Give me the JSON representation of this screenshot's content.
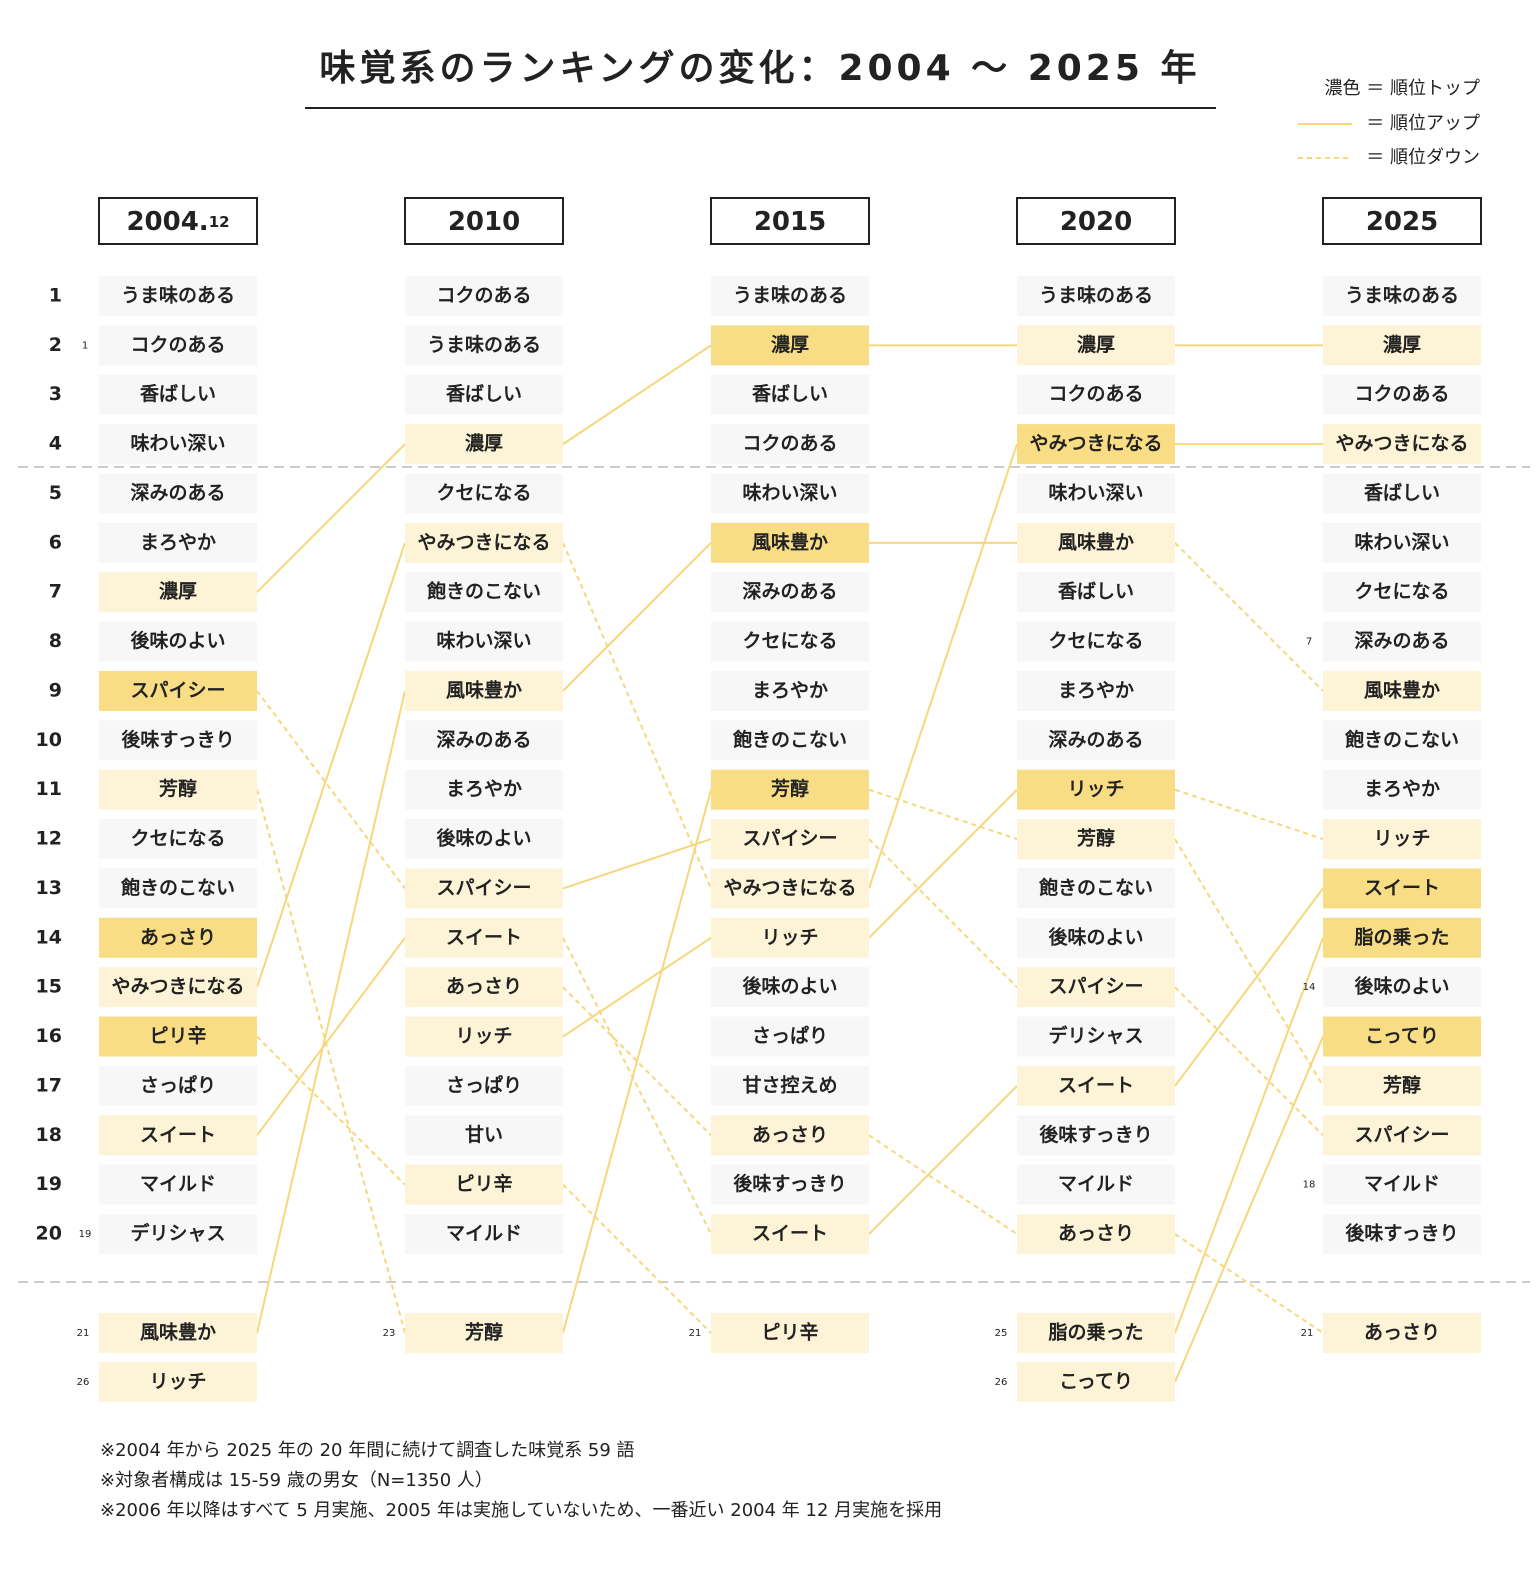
{
  "title": "味覚系のランキングの変化：2004 ～ 2025 年",
  "legend": {
    "top": "濃色 ＝ 順位トップ",
    "up": "＝ 順位アップ",
    "down": "＝ 順位ダウン"
  },
  "ranks": [
    1,
    2,
    3,
    4,
    5,
    6,
    7,
    8,
    9,
    10,
    11,
    12,
    13,
    14,
    15,
    16,
    17,
    18,
    19,
    20
  ],
  "columns": [
    {
      "year": "2004.",
      "year_sub": "12",
      "items": [
        {
          "label": "うま味のある",
          "level": "plain"
        },
        {
          "label": "コクのある",
          "level": "plain",
          "tie": 1
        },
        {
          "label": "香ばしい",
          "level": "plain"
        },
        {
          "label": "味わい深い",
          "level": "plain"
        },
        {
          "label": "深みのある",
          "level": "plain"
        },
        {
          "label": "まろやか",
          "level": "plain"
        },
        {
          "label": "濃厚",
          "level": "light"
        },
        {
          "label": "後味のよい",
          "level": "plain"
        },
        {
          "label": "スパイシー",
          "level": "dark"
        },
        {
          "label": "後味すっきり",
          "level": "plain"
        },
        {
          "label": "芳醇",
          "level": "light"
        },
        {
          "label": "クセになる",
          "level": "plain"
        },
        {
          "label": "飽きのこない",
          "level": "plain"
        },
        {
          "label": "あっさり",
          "level": "dark"
        },
        {
          "label": "やみつきになる",
          "level": "light"
        },
        {
          "label": "ピリ辛",
          "level": "dark"
        },
        {
          "label": "さっぱり",
          "level": "plain"
        },
        {
          "label": "スイート",
          "level": "light"
        },
        {
          "label": "マイルド",
          "level": "plain"
        },
        {
          "label": "デリシャス",
          "level": "plain",
          "tie": 19
        }
      ],
      "extras": [
        {
          "label": "風味豊か",
          "level": "light",
          "rank": 21
        },
        {
          "label": "リッチ",
          "level": "light",
          "rank": 26
        }
      ],
      "links": [
        [
          6,
          3
        ],
        [
          8,
          12
        ],
        [
          10,
          20
        ],
        [
          14,
          5
        ],
        [
          15,
          18
        ],
        [
          17,
          13
        ],
        [
          20,
          8
        ]
      ]
    },
    {
      "year": "2010",
      "items": [
        {
          "label": "コクのある",
          "level": "plain"
        },
        {
          "label": "うま味のある",
          "level": "plain"
        },
        {
          "label": "香ばしい",
          "level": "plain"
        },
        {
          "label": "濃厚",
          "level": "light"
        },
        {
          "label": "クセになる",
          "level": "plain"
        },
        {
          "label": "やみつきになる",
          "level": "light"
        },
        {
          "label": "飽きのこない",
          "level": "plain"
        },
        {
          "label": "味わい深い",
          "level": "plain"
        },
        {
          "label": "風味豊か",
          "level": "light"
        },
        {
          "label": "深みのある",
          "level": "plain"
        },
        {
          "label": "まろやか",
          "level": "plain"
        },
        {
          "label": "後味のよい",
          "level": "plain"
        },
        {
          "label": "スパイシー",
          "level": "light"
        },
        {
          "label": "スイート",
          "level": "light"
        },
        {
          "label": "あっさり",
          "level": "light"
        },
        {
          "label": "リッチ",
          "level": "light"
        },
        {
          "label": "さっぱり",
          "level": "plain"
        },
        {
          "label": "甘い",
          "level": "plain"
        },
        {
          "label": "ピリ辛",
          "level": "light"
        },
        {
          "label": "マイルド",
          "level": "plain"
        }
      ],
      "extras": [
        {
          "label": "芳醇",
          "level": "light",
          "rank": 23
        }
      ],
      "links": [
        [
          3,
          1
        ],
        [
          5,
          12
        ],
        [
          8,
          5
        ],
        [
          12,
          11
        ],
        [
          13,
          19
        ],
        [
          14,
          17
        ],
        [
          15,
          13
        ],
        [
          18,
          20
        ],
        [
          20,
          10
        ]
      ]
    },
    {
      "year": "2015",
      "items": [
        {
          "label": "うま味のある",
          "level": "plain"
        },
        {
          "label": "濃厚",
          "level": "dark"
        },
        {
          "label": "香ばしい",
          "level": "plain"
        },
        {
          "label": "コクのある",
          "level": "plain"
        },
        {
          "label": "味わい深い",
          "level": "plain"
        },
        {
          "label": "風味豊か",
          "level": "dark"
        },
        {
          "label": "深みのある",
          "level": "plain"
        },
        {
          "label": "クセになる",
          "level": "plain"
        },
        {
          "label": "まろやか",
          "level": "plain"
        },
        {
          "label": "飽きのこない",
          "level": "plain"
        },
        {
          "label": "芳醇",
          "level": "dark"
        },
        {
          "label": "スパイシー",
          "level": "light"
        },
        {
          "label": "やみつきになる",
          "level": "light"
        },
        {
          "label": "リッチ",
          "level": "light"
        },
        {
          "label": "後味のよい",
          "level": "plain"
        },
        {
          "label": "さっぱり",
          "level": "plain"
        },
        {
          "label": "甘さ控えめ",
          "level": "plain"
        },
        {
          "label": "あっさり",
          "level": "light"
        },
        {
          "label": "後味すっきり",
          "level": "plain"
        },
        {
          "label": "スイート",
          "level": "light"
        }
      ],
      "extras": [
        {
          "label": "ピリ辛",
          "level": "light",
          "rank": 21
        }
      ],
      "links": [
        [
          1,
          1
        ],
        [
          5,
          5
        ],
        [
          10,
          11
        ],
        [
          11,
          14
        ],
        [
          12,
          3
        ],
        [
          13,
          10
        ],
        [
          17,
          19
        ],
        [
          19,
          16
        ]
      ]
    },
    {
      "year": "2020",
      "items": [
        {
          "label": "うま味のある",
          "level": "plain"
        },
        {
          "label": "濃厚",
          "level": "light"
        },
        {
          "label": "コクのある",
          "level": "plain"
        },
        {
          "label": "やみつきになる",
          "level": "dark"
        },
        {
          "label": "味わい深い",
          "level": "plain"
        },
        {
          "label": "風味豊か",
          "level": "light"
        },
        {
          "label": "香ばしい",
          "level": "plain"
        },
        {
          "label": "クセになる",
          "level": "plain"
        },
        {
          "label": "まろやか",
          "level": "plain"
        },
        {
          "label": "深みのある",
          "level": "plain"
        },
        {
          "label": "リッチ",
          "level": "dark"
        },
        {
          "label": "芳醇",
          "level": "light"
        },
        {
          "label": "飽きのこない",
          "level": "plain"
        },
        {
          "label": "後味のよい",
          "level": "plain"
        },
        {
          "label": "スパイシー",
          "level": "light"
        },
        {
          "label": "デリシャス",
          "level": "plain"
        },
        {
          "label": "スイート",
          "level": "light"
        },
        {
          "label": "後味すっきり",
          "level": "plain"
        },
        {
          "label": "マイルド",
          "level": "plain"
        },
        {
          "label": "あっさり",
          "level": "light"
        }
      ],
      "extras": [
        {
          "label": "脂の乗った",
          "level": "light",
          "rank": 25
        },
        {
          "label": "こってり",
          "level": "light",
          "rank": 26
        }
      ],
      "links": [
        [
          1,
          1
        ],
        [
          3,
          3
        ],
        [
          5,
          8
        ],
        [
          10,
          11
        ],
        [
          11,
          16
        ],
        [
          14,
          17
        ],
        [
          16,
          12
        ],
        [
          19,
          20
        ],
        [
          20,
          13
        ],
        [
          21,
          15
        ]
      ]
    },
    {
      "year": "2025",
      "items": [
        {
          "label": "うま味のある",
          "level": "plain"
        },
        {
          "label": "濃厚",
          "level": "light"
        },
        {
          "label": "コクのある",
          "level": "plain"
        },
        {
          "label": "やみつきになる",
          "level": "light"
        },
        {
          "label": "香ばしい",
          "level": "plain"
        },
        {
          "label": "味わい深い",
          "level": "plain"
        },
        {
          "label": "クセになる",
          "level": "plain"
        },
        {
          "label": "深みのある",
          "level": "plain",
          "tie": 7
        },
        {
          "label": "風味豊か",
          "level": "light"
        },
        {
          "label": "飽きのこない",
          "level": "plain"
        },
        {
          "label": "まろやか",
          "level": "plain"
        },
        {
          "label": "リッチ",
          "level": "light"
        },
        {
          "label": "スイート",
          "level": "dark"
        },
        {
          "label": "脂の乗った",
          "level": "dark"
        },
        {
          "label": "後味のよい",
          "level": "plain",
          "tie": 14
        },
        {
          "label": "こってり",
          "level": "dark"
        },
        {
          "label": "芳醇",
          "level": "light"
        },
        {
          "label": "スパイシー",
          "level": "light"
        },
        {
          "label": "マイルド",
          "level": "plain",
          "tie": 18
        },
        {
          "label": "後味すっきり",
          "level": "plain"
        }
      ],
      "extras": [
        {
          "label": "あっさり",
          "level": "light",
          "rank": 21
        }
      ]
    }
  ],
  "notes": [
    "※2004 年から 2025 年の 20 年間に続けて調査した味覚系 59 語",
    "※対象者構成は 15-59 歳の男女（N=1350 人）",
    "※2006 年以降はすべて 5 月実施、2005 年は実施していないため、一番近い 2004 年 12 月実施を採用"
  ]
}
